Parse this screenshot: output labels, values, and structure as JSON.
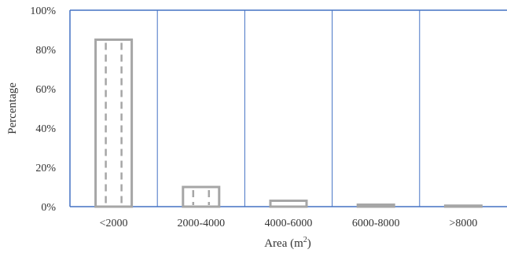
{
  "chart_data": {
    "type": "bar",
    "categories": [
      "<2000",
      "2000-4000",
      "4000-6000",
      "6000-8000",
      ">8000"
    ],
    "values": [
      85,
      10,
      3,
      1,
      0.5
    ],
    "ylim": [
      0,
      100
    ],
    "y_ticks": [
      "0%",
      "20%",
      "40%",
      "60%",
      "80%",
      "100%"
    ],
    "ylabel": "Percentage",
    "xlabel": {
      "base": "Area (m",
      "sup": "2",
      "close": ")"
    },
    "grid": "vertical category separators",
    "colors": {
      "frame": "#4472c4",
      "bar": "#a6a6a6"
    }
  }
}
